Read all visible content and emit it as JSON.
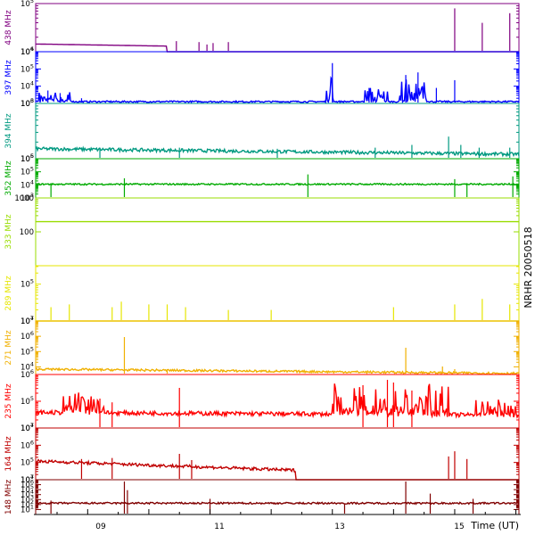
{
  "chart_data": {
    "type": "line",
    "title_vertical": "NRHR 20050518",
    "xlabel": "Time (UT)",
    "x_ticks": [
      "09",
      "11",
      "13",
      "15"
    ],
    "x_range_hours": [
      8.15,
      16.05
    ],
    "panels": [
      {
        "id": "p438",
        "label": "438 MHz",
        "color": "#800080",
        "log_range": [
          4,
          5
        ],
        "tick_exps": [
          4,
          5
        ],
        "baseline": "decaying",
        "base_start": 0.16,
        "base_end": 0.0,
        "fade_at": 10.3,
        "spikes": [
          [
            10.45,
            0.22
          ],
          [
            10.82,
            0.2
          ],
          [
            10.95,
            0.15
          ],
          [
            11.05,
            0.18
          ],
          [
            11.3,
            0.2
          ],
          [
            15.0,
            0.9
          ],
          [
            15.45,
            0.6
          ],
          [
            15.9,
            0.8
          ]
        ]
      },
      {
        "id": "p397",
        "label": "397 MHz",
        "color": "#0000ff",
        "log_range": [
          3,
          6
        ],
        "tick_exps": [
          3,
          4,
          5,
          6
        ],
        "baseline": "flat",
        "base": 0.02,
        "noise": 0.03,
        "bursts": [
          [
            8.2,
            8.75,
            0.18
          ],
          [
            12.9,
            13.05,
            0.75
          ],
          [
            13.5,
            13.9,
            0.3
          ],
          [
            14.1,
            14.6,
            0.45
          ]
        ],
        "spikes": [
          [
            8.35,
            0.25
          ],
          [
            8.55,
            0.2
          ],
          [
            8.9,
            0.1
          ],
          [
            13.0,
            0.78
          ],
          [
            13.6,
            0.3
          ],
          [
            14.2,
            0.55
          ],
          [
            14.4,
            0.6
          ],
          [
            14.7,
            0.3
          ],
          [
            15.0,
            0.45
          ]
        ]
      },
      {
        "id": "p394",
        "label": "394 MHz",
        "color": "#009980",
        "log_range": [
          5,
          6
        ],
        "tick_exps": [
          5,
          6
        ],
        "baseline": "ramp",
        "base_start": 0.15,
        "base_end": 0.05,
        "noise": 0.06,
        "spikes": [
          [
            9.2,
            0.2
          ],
          [
            10.5,
            0.2
          ],
          [
            12.1,
            0.18
          ],
          [
            13.7,
            0.2
          ],
          [
            14.3,
            0.25
          ],
          [
            14.9,
            0.4
          ],
          [
            15.1,
            0.25
          ],
          [
            15.4,
            0.2
          ],
          [
            15.9,
            0.2
          ]
        ]
      },
      {
        "id": "p352",
        "label": "352 MHz",
        "color": "#00aa00",
        "log_range": [
          3,
          6
        ],
        "tick_exps": [
          3,
          4,
          5,
          6
        ],
        "baseline": "flat",
        "base": 0.33,
        "noise": 0.04,
        "spikes": [
          [
            8.4,
            0.38
          ],
          [
            9.6,
            0.5
          ],
          [
            12.6,
            0.6
          ],
          [
            15.0,
            0.48
          ],
          [
            15.2,
            0.38
          ],
          [
            15.95,
            0.55
          ]
        ]
      },
      {
        "id": "p333",
        "label": "333 MHz",
        "color": "#99dd00",
        "log_range": [
          1,
          3
        ],
        "tick_exps": [
          2,
          3
        ],
        "tick_labels": [
          "100",
          "1000"
        ],
        "baseline": "flat",
        "base": 0.65,
        "noise": 0.0,
        "spikes": []
      },
      {
        "id": "p289",
        "label": "289 MHz",
        "color": "#e6e600",
        "log_range": [
          4,
          5.5
        ],
        "tick_exps": [
          4,
          5
        ],
        "baseline": "flat",
        "base": 0.0,
        "noise": 0.0,
        "spikes": [
          [
            8.4,
            0.25
          ],
          [
            8.7,
            0.3
          ],
          [
            9.4,
            0.25
          ],
          [
            9.55,
            0.35
          ],
          [
            10.0,
            0.3
          ],
          [
            10.3,
            0.3
          ],
          [
            10.6,
            0.25
          ],
          [
            11.3,
            0.2
          ],
          [
            12.0,
            0.2
          ],
          [
            14.0,
            0.25
          ],
          [
            15.0,
            0.3
          ],
          [
            15.45,
            0.4
          ],
          [
            15.9,
            0.3
          ]
        ]
      },
      {
        "id": "p271",
        "label": "271 MHz",
        "color": "#f0b000",
        "log_range": [
          3.5,
          7
        ],
        "tick_exps": [
          4,
          5,
          6,
          7
        ],
        "baseline": "ramp",
        "base_start": 0.08,
        "base_end": 0.0,
        "noise": 0.04,
        "spikes": [
          [
            9.6,
            0.7
          ],
          [
            10.3,
            0.1
          ],
          [
            14.2,
            0.5
          ],
          [
            14.8,
            0.15
          ],
          [
            15.0,
            0.1
          ]
        ]
      },
      {
        "id": "p235",
        "label": "235 MHz",
        "color": "#ff0000",
        "log_range": [
          4,
          6
        ],
        "tick_exps": [
          4,
          5,
          6
        ],
        "baseline": "ramp",
        "base_start": 0.25,
        "base_end": 0.2,
        "noise": 0.08,
        "bursts": [
          [
            8.6,
            9.3,
            0.35
          ],
          [
            13.0,
            14.9,
            0.55
          ],
          [
            15.3,
            16.0,
            0.3
          ]
        ],
        "spikes": [
          [
            9.2,
            0.55
          ],
          [
            9.4,
            0.48
          ],
          [
            10.5,
            0.75
          ],
          [
            13.5,
            0.8
          ],
          [
            13.9,
            0.9
          ],
          [
            14.0,
            0.85
          ],
          [
            14.3,
            0.7
          ]
        ]
      },
      {
        "id": "p164",
        "label": "164 MHz",
        "color": "#c00000",
        "log_range": [
          4,
          7
        ],
        "tick_exps": [
          4,
          5,
          6,
          7
        ],
        "baseline": "ramp",
        "base_start": 0.33,
        "base_end": 0.0,
        "noise": 0.06,
        "fade_at": 12.4,
        "spikes": [
          [
            8.9,
            0.4
          ],
          [
            9.4,
            0.42
          ],
          [
            10.5,
            0.5
          ],
          [
            10.7,
            0.38
          ],
          [
            14.9,
            0.45
          ],
          [
            15.0,
            0.55
          ],
          [
            15.2,
            0.4
          ]
        ]
      },
      {
        "id": "p148",
        "label": "148 MHz",
        "color": "#800000",
        "log_range": [
          0,
          7
        ],
        "tick_exps": [
          1,
          2,
          3,
          4,
          5,
          6,
          7
        ],
        "baseline": "flat",
        "base": 0.3,
        "noise": 0.05,
        "spikes": [
          [
            8.4,
            0.4
          ],
          [
            9.6,
            0.95
          ],
          [
            9.65,
            0.7
          ],
          [
            11.0,
            0.45
          ],
          [
            13.2,
            0.3
          ],
          [
            14.2,
            0.95
          ],
          [
            14.6,
            0.6
          ],
          [
            15.3,
            0.45
          ]
        ]
      }
    ]
  }
}
